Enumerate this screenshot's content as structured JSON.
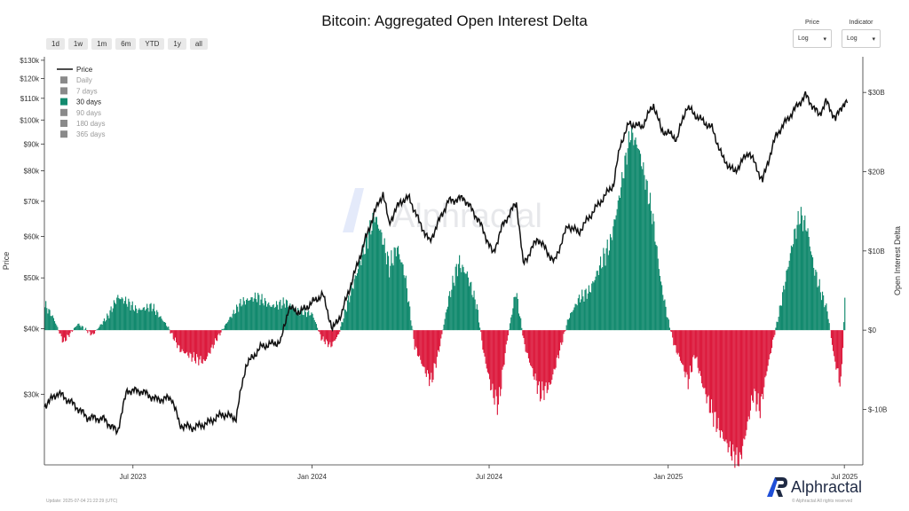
{
  "title": "Bitcoin: Aggregated Open Interest Delta",
  "range_buttons": [
    "1d",
    "1w",
    "1m",
    "6m",
    "YTD",
    "1y",
    "all"
  ],
  "controls": {
    "price": {
      "label": "Price",
      "value": "Log"
    },
    "indicator": {
      "label": "Indicator",
      "value": "Log"
    }
  },
  "footer": {
    "updated": "Update: 2025-07-04 21:22:29 (UTC)",
    "rights": "© Alphractal All rights reserved"
  },
  "brand": {
    "name": "Alphractal"
  },
  "watermark": "Alphractal",
  "colors": {
    "price_line": "#111111",
    "positive": "#128a6e",
    "negative": "#dc1a3d",
    "legend_inactive": "#8a8a8a"
  },
  "legend": [
    {
      "label": "Price",
      "active": true,
      "kind": "line"
    },
    {
      "label": "Daily",
      "active": false,
      "kind": "box"
    },
    {
      "label": "7 days",
      "active": false,
      "kind": "box"
    },
    {
      "label": "30 days",
      "active": true,
      "kind": "box"
    },
    {
      "label": "90 days",
      "active": false,
      "kind": "box"
    },
    {
      "label": "180 days",
      "active": false,
      "kind": "box"
    },
    {
      "label": "365 days",
      "active": false,
      "kind": "box"
    }
  ],
  "chart_data": {
    "type": "bar",
    "title": "Bitcoin: Aggregated Open Interest Delta",
    "x_range": [
      "2023-04-01",
      "2025-07-20"
    ],
    "x_ticks": [
      {
        "date": "2023-07-01",
        "label": "Jul 2023"
      },
      {
        "date": "2024-01-01",
        "label": "Jan 2024"
      },
      {
        "date": "2024-07-01",
        "label": "Jul 2024"
      },
      {
        "date": "2025-01-01",
        "label": "Jan 2025"
      },
      {
        "date": "2025-07-01",
        "label": "Jul 2025"
      }
    ],
    "y_left": {
      "label": "Price",
      "scale": "log",
      "range": [
        22000,
        132000
      ],
      "ticks": [
        {
          "v": 30000,
          "label": "$30k"
        },
        {
          "v": 40000,
          "label": "$40k"
        },
        {
          "v": 50000,
          "label": "$50k"
        },
        {
          "v": 60000,
          "label": "$60k"
        },
        {
          "v": 70000,
          "label": "$70k"
        },
        {
          "v": 80000,
          "label": "$80k"
        },
        {
          "v": 90000,
          "label": "$90k"
        },
        {
          "v": 100000,
          "label": "$100k"
        },
        {
          "v": 110000,
          "label": "$110k"
        },
        {
          "v": 120000,
          "label": "$120k"
        },
        {
          "v": 130000,
          "label": "$130k"
        }
      ]
    },
    "y_right": {
      "label": "Open Interest Delta",
      "unit": "USD billions",
      "range": [
        -17,
        34.5
      ],
      "ticks": [
        {
          "v": -10,
          "label": "$-10B"
        },
        {
          "v": 0,
          "label": "$0"
        },
        {
          "v": 10,
          "label": "$10B"
        },
        {
          "v": 20,
          "label": "$20B"
        },
        {
          "v": 30,
          "label": "$30B"
        }
      ]
    },
    "series": [
      {
        "name": "Price",
        "type": "line",
        "axis": "left",
        "points": [
          [
            "2023-04-01",
            28500
          ],
          [
            "2023-04-15",
            30200
          ],
          [
            "2023-05-01",
            28700
          ],
          [
            "2023-05-15",
            27100
          ],
          [
            "2023-06-01",
            26900
          ],
          [
            "2023-06-15",
            25400
          ],
          [
            "2023-06-25",
            30500
          ],
          [
            "2023-07-10",
            30400
          ],
          [
            "2023-07-25",
            29300
          ],
          [
            "2023-08-10",
            29500
          ],
          [
            "2023-08-18",
            26200
          ],
          [
            "2023-09-01",
            25900
          ],
          [
            "2023-09-15",
            26400
          ],
          [
            "2023-10-01",
            27500
          ],
          [
            "2023-10-15",
            27000
          ],
          [
            "2023-10-25",
            34000
          ],
          [
            "2023-11-10",
            37000
          ],
          [
            "2023-11-30",
            37800
          ],
          [
            "2023-12-08",
            43800
          ],
          [
            "2023-12-20",
            43000
          ],
          [
            "2024-01-02",
            45000
          ],
          [
            "2024-01-12",
            46500
          ],
          [
            "2024-01-22",
            39800
          ],
          [
            "2024-02-01",
            43000
          ],
          [
            "2024-02-15",
            51800
          ],
          [
            "2024-02-28",
            61500
          ],
          [
            "2024-03-05",
            66500
          ],
          [
            "2024-03-14",
            72500
          ],
          [
            "2024-03-20",
            63500
          ],
          [
            "2024-04-01",
            70000
          ],
          [
            "2024-04-10",
            71000
          ],
          [
            "2024-04-20",
            64000
          ],
          [
            "2024-05-01",
            58500
          ],
          [
            "2024-05-20",
            70000
          ],
          [
            "2024-06-05",
            71000
          ],
          [
            "2024-06-20",
            64500
          ],
          [
            "2024-07-05",
            55500
          ],
          [
            "2024-07-15",
            63000
          ],
          [
            "2024-07-29",
            69500
          ],
          [
            "2024-08-05",
            53000
          ],
          [
            "2024-08-20",
            59500
          ],
          [
            "2024-09-06",
            53500
          ],
          [
            "2024-09-20",
            63000
          ],
          [
            "2024-10-01",
            61000
          ],
          [
            "2024-10-20",
            68500
          ],
          [
            "2024-10-30",
            72500
          ],
          [
            "2024-11-06",
            75500
          ],
          [
            "2024-11-13",
            90000
          ],
          [
            "2024-11-22",
            98500
          ],
          [
            "2024-12-05",
            97000
          ],
          [
            "2024-12-17",
            107000
          ],
          [
            "2024-12-25",
            95500
          ],
          [
            "2025-01-01",
            94500
          ],
          [
            "2025-01-10",
            92000
          ],
          [
            "2025-01-20",
            106000
          ],
          [
            "2025-02-01",
            101000
          ],
          [
            "2025-02-15",
            96500
          ],
          [
            "2025-02-26",
            84500
          ],
          [
            "2025-03-10",
            79500
          ],
          [
            "2025-03-25",
            87000
          ],
          [
            "2025-04-08",
            76500
          ],
          [
            "2025-04-22",
            93500
          ],
          [
            "2025-05-08",
            103000
          ],
          [
            "2025-05-22",
            111500
          ],
          [
            "2025-06-05",
            102000
          ],
          [
            "2025-06-12",
            108500
          ],
          [
            "2025-06-22",
            100500
          ],
          [
            "2025-06-30",
            107500
          ],
          [
            "2025-07-04",
            108200
          ]
        ]
      },
      {
        "name": "30 days",
        "type": "bar",
        "axis": "right",
        "segments": [
          [
            "2023-04-01",
            3.2
          ],
          [
            "2023-04-10",
            1.5
          ],
          [
            "2023-04-20",
            -1.5
          ],
          [
            "2023-05-05",
            0.8
          ],
          [
            "2023-05-20",
            -0.6
          ],
          [
            "2023-06-05",
            1.8
          ],
          [
            "2023-06-15",
            4.2
          ],
          [
            "2023-06-25",
            3.5
          ],
          [
            "2023-07-05",
            2.5
          ],
          [
            "2023-07-20",
            3.0
          ],
          [
            "2023-08-05",
            0.5
          ],
          [
            "2023-08-18",
            -2.5
          ],
          [
            "2023-09-01",
            -3.5
          ],
          [
            "2023-09-12",
            -4.0
          ],
          [
            "2023-09-25",
            -1.0
          ],
          [
            "2023-10-08",
            1.5
          ],
          [
            "2023-10-20",
            3.5
          ],
          [
            "2023-11-05",
            4.2
          ],
          [
            "2023-11-20",
            3.0
          ],
          [
            "2023-12-05",
            3.5
          ],
          [
            "2023-12-15",
            2.5
          ],
          [
            "2024-01-01",
            2.0
          ],
          [
            "2024-01-10",
            -1.0
          ],
          [
            "2024-01-20",
            -2.0
          ],
          [
            "2024-01-28",
            -0.5
          ],
          [
            "2024-02-05",
            3.0
          ],
          [
            "2024-02-15",
            7.0
          ],
          [
            "2024-02-25",
            11.0
          ],
          [
            "2024-03-05",
            14.5
          ],
          [
            "2024-03-12",
            12.0
          ],
          [
            "2024-03-20",
            8.0
          ],
          [
            "2024-03-28",
            10.5
          ],
          [
            "2024-04-05",
            7.0
          ],
          [
            "2024-04-15",
            -2.0
          ],
          [
            "2024-04-25",
            -5.0
          ],
          [
            "2024-05-02",
            -6.5
          ],
          [
            "2024-05-10",
            -2.5
          ],
          [
            "2024-05-20",
            4.0
          ],
          [
            "2024-05-30",
            8.5
          ],
          [
            "2024-06-08",
            7.0
          ],
          [
            "2024-06-18",
            3.0
          ],
          [
            "2024-06-25",
            -3.0
          ],
          [
            "2024-07-03",
            -7.5
          ],
          [
            "2024-07-10",
            -9.5
          ],
          [
            "2024-07-18",
            -2.0
          ],
          [
            "2024-07-28",
            5.0
          ],
          [
            "2024-08-06",
            -2.0
          ],
          [
            "2024-08-15",
            -5.5
          ],
          [
            "2024-08-22",
            -8.0
          ],
          [
            "2024-09-01",
            -7.0
          ],
          [
            "2024-09-10",
            -3.0
          ],
          [
            "2024-09-20",
            1.5
          ],
          [
            "2024-10-01",
            4.0
          ],
          [
            "2024-10-12",
            5.0
          ],
          [
            "2024-10-22",
            8.0
          ],
          [
            "2024-11-02",
            11.0
          ],
          [
            "2024-11-10",
            16.0
          ],
          [
            "2024-11-17",
            21.0
          ],
          [
            "2024-11-23",
            25.0
          ],
          [
            "2024-12-01",
            23.0
          ],
          [
            "2024-12-08",
            19.0
          ],
          [
            "2024-12-16",
            14.0
          ],
          [
            "2024-12-24",
            6.0
          ],
          [
            "2024-12-31",
            1.5
          ],
          [
            "2025-01-07",
            -2.0
          ],
          [
            "2025-01-14",
            -4.0
          ],
          [
            "2025-01-21",
            -6.5
          ],
          [
            "2025-01-28",
            -3.0
          ],
          [
            "2025-02-05",
            -7.0
          ],
          [
            "2025-02-12",
            -9.5
          ],
          [
            "2025-02-20",
            -12.0
          ],
          [
            "2025-02-28",
            -14.0
          ],
          [
            "2025-03-07",
            -15.5
          ],
          [
            "2025-03-15",
            -16.5
          ],
          [
            "2025-03-22",
            -12.5
          ],
          [
            "2025-03-29",
            -8.0
          ],
          [
            "2025-04-05",
            -10.0
          ],
          [
            "2025-04-12",
            -5.0
          ],
          [
            "2025-04-18",
            -1.5
          ],
          [
            "2025-04-25",
            2.5
          ],
          [
            "2025-05-02",
            7.0
          ],
          [
            "2025-05-09",
            11.5
          ],
          [
            "2025-05-16",
            14.5
          ],
          [
            "2025-05-23",
            13.0
          ],
          [
            "2025-05-30",
            8.0
          ],
          [
            "2025-06-06",
            5.0
          ],
          [
            "2025-06-13",
            2.5
          ],
          [
            "2025-06-20",
            -3.5
          ],
          [
            "2025-06-27",
            -7.0
          ],
          [
            "2025-07-01",
            3.5
          ]
        ]
      }
    ],
    "legend_position": "top-left",
    "grid": false
  }
}
